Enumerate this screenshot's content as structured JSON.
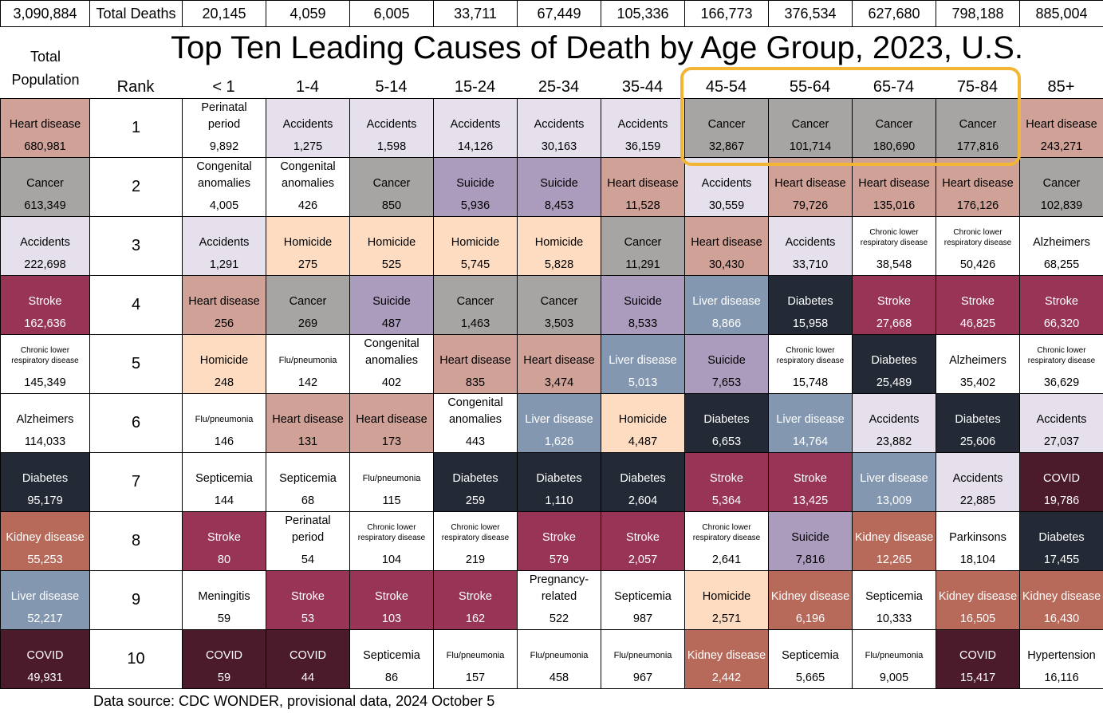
{
  "top_row": {
    "total": "3,090,884",
    "label": "Total Deaths",
    "age_totals": [
      "20,145",
      "4,059",
      "6,005",
      "33,711",
      "67,449",
      "105,336",
      "166,773",
      "376,534",
      "627,680",
      "798,188",
      "885,004"
    ]
  },
  "title": "Top Ten Leading Causes of Death by Age Group, 2023, U.S.",
  "header": {
    "total_label": "Total Population",
    "rank_label": "Rank",
    "age_groups": [
      "< 1",
      "1-4",
      "5-14",
      "15-24",
      "25-34",
      "35-44",
      "45-54",
      "55-64",
      "65-74",
      "75-84",
      "85+"
    ]
  },
  "cause_colors": {
    "Heart disease": "#cfa197",
    "Cancer": "#a7a5a3",
    "Accidents": "#e6e0ec",
    "Suicide": "#ab9cbe",
    "Homicide": "#fddcc1",
    "Stroke": "#983456",
    "Diabetes": "#232a35",
    "Liver disease": "#8497b0",
    "Kidney disease": "#b7695a",
    "COVID": "#4b1a2b"
  },
  "rows": [
    {
      "rank": 1,
      "cells": [
        [
          "Heart disease",
          "680,981"
        ],
        [
          "Perinatal period",
          "9,892"
        ],
        [
          "Accidents",
          "1,275"
        ],
        [
          "Accidents",
          "1,598"
        ],
        [
          "Accidents",
          "14,126"
        ],
        [
          "Accidents",
          "30,163"
        ],
        [
          "Accidents",
          "36,159"
        ],
        [
          "Cancer",
          "32,867"
        ],
        [
          "Cancer",
          "101,714"
        ],
        [
          "Cancer",
          "180,690"
        ],
        [
          "Cancer",
          "177,816"
        ],
        [
          "Heart disease",
          "243,271"
        ]
      ]
    },
    {
      "rank": 2,
      "cells": [
        [
          "Cancer",
          "613,349"
        ],
        [
          "Congenital anomalies",
          "4,005"
        ],
        [
          "Congenital anomalies",
          "426"
        ],
        [
          "Cancer",
          "850"
        ],
        [
          "Suicide",
          "5,936"
        ],
        [
          "Suicide",
          "8,453"
        ],
        [
          "Heart disease",
          "11,528"
        ],
        [
          "Accidents",
          "30,559"
        ],
        [
          "Heart disease",
          "79,726"
        ],
        [
          "Heart disease",
          "135,016"
        ],
        [
          "Heart disease",
          "176,126"
        ],
        [
          "Cancer",
          "102,839"
        ]
      ]
    },
    {
      "rank": 3,
      "cells": [
        [
          "Accidents",
          "222,698"
        ],
        [
          "Accidents",
          "1,291"
        ],
        [
          "Homicide",
          "275"
        ],
        [
          "Homicide",
          "525"
        ],
        [
          "Homicide",
          "5,745"
        ],
        [
          "Homicide",
          "5,828"
        ],
        [
          "Cancer",
          "11,291"
        ],
        [
          "Heart disease",
          "30,430"
        ],
        [
          "Accidents",
          "33,710"
        ],
        [
          "Chronic lower respiratory disease",
          "38,548"
        ],
        [
          "Chronic lower respiratory disease",
          "50,426"
        ],
        [
          "Alzheimers",
          "68,255"
        ]
      ]
    },
    {
      "rank": 4,
      "cells": [
        [
          "Stroke",
          "162,636"
        ],
        [
          "Heart disease",
          "256"
        ],
        [
          "Cancer",
          "269"
        ],
        [
          "Suicide",
          "487"
        ],
        [
          "Cancer",
          "1,463"
        ],
        [
          "Cancer",
          "3,503"
        ],
        [
          "Suicide",
          "8,533"
        ],
        [
          "Liver disease",
          "8,866"
        ],
        [
          "Diabetes",
          "15,958"
        ],
        [
          "Stroke",
          "27,668"
        ],
        [
          "Stroke",
          "46,825"
        ],
        [
          "Stroke",
          "66,320"
        ]
      ]
    },
    {
      "rank": 5,
      "cells": [
        [
          "Chronic lower respiratory disease",
          "145,349"
        ],
        [
          "Homicide",
          "248"
        ],
        [
          "Flu/pneumonia",
          "142"
        ],
        [
          "Congenital anomalies",
          "402"
        ],
        [
          "Heart disease",
          "835"
        ],
        [
          "Heart disease",
          "3,474"
        ],
        [
          "Liver disease",
          "5,013"
        ],
        [
          "Suicide",
          "7,653"
        ],
        [
          "Chronic lower respiratory disease",
          "15,748"
        ],
        [
          "Diabetes",
          "25,489"
        ],
        [
          "Alzheimers",
          "35,402"
        ],
        [
          "Chronic lower respiratory disease",
          "36,629"
        ]
      ]
    },
    {
      "rank": 6,
      "cells": [
        [
          "Alzheimers",
          "114,033"
        ],
        [
          "Flu/pneumonia",
          "146"
        ],
        [
          "Heart disease",
          "131"
        ],
        [
          "Heart disease",
          "173"
        ],
        [
          "Congenital anomalies",
          "443"
        ],
        [
          "Liver disease",
          "1,626"
        ],
        [
          "Homicide",
          "4,487"
        ],
        [
          "Diabetes",
          "6,653"
        ],
        [
          "Liver disease",
          "14,764"
        ],
        [
          "Accidents",
          "23,882"
        ],
        [
          "Diabetes",
          "25,606"
        ],
        [
          "Accidents",
          "27,037"
        ]
      ]
    },
    {
      "rank": 7,
      "cells": [
        [
          "Diabetes",
          "95,179"
        ],
        [
          "Septicemia",
          "144"
        ],
        [
          "Septicemia",
          "68"
        ],
        [
          "Flu/pneumonia",
          "115"
        ],
        [
          "Diabetes",
          "259"
        ],
        [
          "Diabetes",
          "1,110"
        ],
        [
          "Diabetes",
          "2,604"
        ],
        [
          "Stroke",
          "5,364"
        ],
        [
          "Stroke",
          "13,425"
        ],
        [
          "Liver disease",
          "13,009"
        ],
        [
          "Accidents",
          "22,885"
        ],
        [
          "COVID",
          "19,786"
        ]
      ]
    },
    {
      "rank": 8,
      "cells": [
        [
          "Kidney disease",
          "55,253"
        ],
        [
          "Stroke",
          "80"
        ],
        [
          "Perinatal period",
          "54"
        ],
        [
          "Chronic lower respiratory disease",
          "104"
        ],
        [
          "Chronic lower respiratory disease",
          "219"
        ],
        [
          "Stroke",
          "579"
        ],
        [
          "Stroke",
          "2,057"
        ],
        [
          "Chronic lower respiratory disease",
          "2,641"
        ],
        [
          "Suicide",
          "7,816"
        ],
        [
          "Kidney disease",
          "12,265"
        ],
        [
          "Parkinsons",
          "18,104"
        ],
        [
          "Diabetes",
          "17,455"
        ]
      ]
    },
    {
      "rank": 9,
      "cells": [
        [
          "Liver disease",
          "52,217"
        ],
        [
          "Meningitis",
          "59"
        ],
        [
          "Stroke",
          "53"
        ],
        [
          "Stroke",
          "103"
        ],
        [
          "Stroke",
          "162"
        ],
        [
          "Pregnancy-related",
          "522"
        ],
        [
          "Septicemia",
          "987"
        ],
        [
          "Homicide",
          "2,571"
        ],
        [
          "Kidney disease",
          "6,196"
        ],
        [
          "Septicemia",
          "10,333"
        ],
        [
          "Kidney disease",
          "16,505"
        ],
        [
          "Kidney disease",
          "16,430"
        ]
      ]
    },
    {
      "rank": 10,
      "cells": [
        [
          "COVID",
          "49,931"
        ],
        [
          "COVID",
          "59"
        ],
        [
          "COVID",
          "44"
        ],
        [
          "Septicemia",
          "86"
        ],
        [
          "Flu/pneumonia",
          "157"
        ],
        [
          "Flu/pneumonia",
          "458"
        ],
        [
          "Flu/pneumonia",
          "967"
        ],
        [
          "Kidney disease",
          "2,442"
        ],
        [
          "Septicemia",
          "5,665"
        ],
        [
          "Flu/pneumonia",
          "9,005"
        ],
        [
          "COVID",
          "15,417"
        ],
        [
          "Hypertension",
          "16,116"
        ]
      ]
    }
  ],
  "footer": "Data source: CDC WONDER, provisional data, 2024 October 5"
}
